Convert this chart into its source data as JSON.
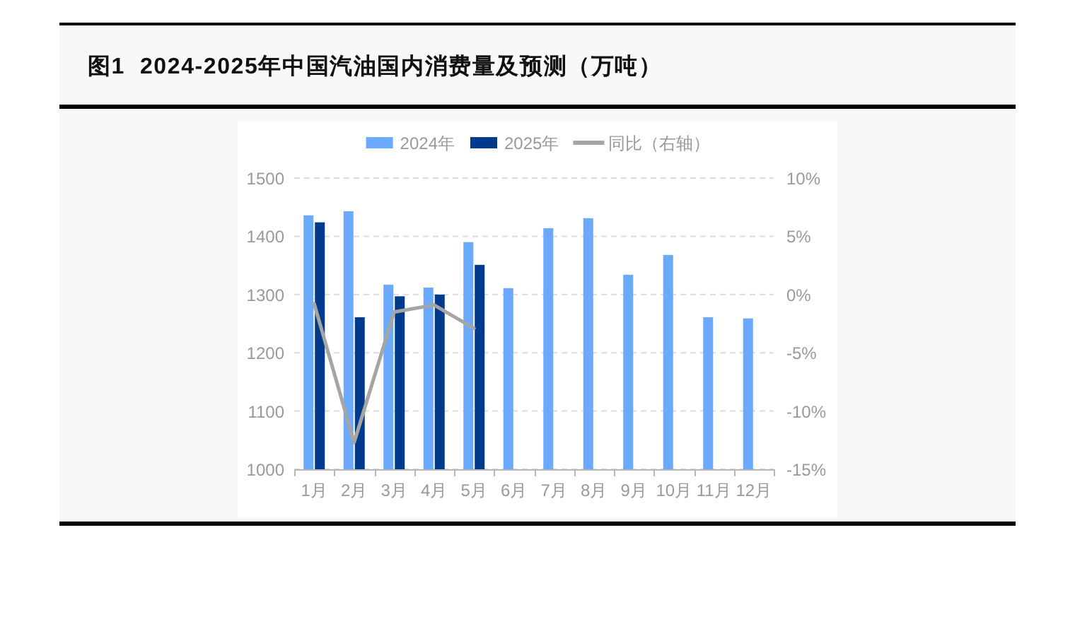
{
  "chart_data": {
    "type": "bar",
    "title": "图1  2024-2025年中国汽油国内消费量及预测（万吨）",
    "categories": [
      "1月",
      "2月",
      "3月",
      "4月",
      "5月",
      "6月",
      "7月",
      "8月",
      "9月",
      "10月",
      "11月",
      "12月"
    ],
    "series": [
      {
        "name": "2024年",
        "color": "#6aa9fc",
        "values": [
          1436,
          1443,
          1317,
          1312,
          1390,
          1311,
          1414,
          1431,
          1334,
          1368,
          1261,
          1259
        ]
      },
      {
        "name": "2025年",
        "color": "#003a8c",
        "values": [
          1424,
          1261,
          1297,
          1300,
          1351,
          null,
          null,
          null,
          null,
          null,
          null,
          null
        ]
      },
      {
        "name": "同比（右轴）",
        "type": "line",
        "axis": "y2",
        "color": "#a5a5a5",
        "values": [
          -0.8,
          -12.7,
          -1.5,
          -0.9,
          -2.9,
          null,
          null,
          null,
          null,
          null,
          null,
          null
        ]
      }
    ],
    "ylim": [
      1000,
      1500
    ],
    "yticks": [
      1000,
      1100,
      1200,
      1300,
      1400,
      1500
    ],
    "y2lim": [
      -15,
      10
    ],
    "y2ticks": [
      {
        "value": -15,
        "label": "-15%"
      },
      {
        "value": -10,
        "label": "-10%"
      },
      {
        "value": -5,
        "label": "-5%"
      },
      {
        "value": 0,
        "label": "0%"
      },
      {
        "value": 5,
        "label": "5%"
      },
      {
        "value": 10,
        "label": "10%"
      }
    ],
    "grid": "y",
    "legend": "top",
    "marker": "none",
    "line_style": "solid"
  }
}
